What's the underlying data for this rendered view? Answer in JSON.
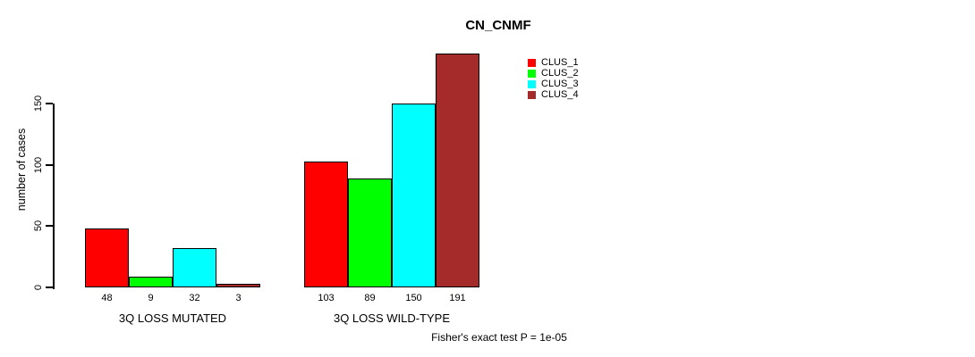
{
  "chart_data": {
    "type": "bar",
    "title": "CN_CNMF",
    "ylabel": "number of cases",
    "yticks": [
      0,
      50,
      100,
      150
    ],
    "ylim": [
      0,
      191
    ],
    "grid": false,
    "legend_position": "top-right-inside",
    "categories": [
      "3Q LOSS MUTATED",
      "3Q LOSS WILD-TYPE"
    ],
    "series": [
      {
        "name": "CLUS_1",
        "color": "#FF0000",
        "values": [
          48,
          103
        ]
      },
      {
        "name": "CLUS_2",
        "color": "#00FF00",
        "values": [
          9,
          89
        ]
      },
      {
        "name": "CLUS_3",
        "color": "#00FFFF",
        "values": [
          32,
          150
        ]
      },
      {
        "name": "CLUS_4",
        "color": "#A52A2A",
        "values": [
          3,
          191
        ]
      }
    ],
    "bar_value_labels": [
      [
        48,
        9,
        32,
        3
      ],
      [
        103,
        89,
        150,
        191
      ]
    ],
    "annotation": "Fisher's exact test P = 1e-05"
  }
}
